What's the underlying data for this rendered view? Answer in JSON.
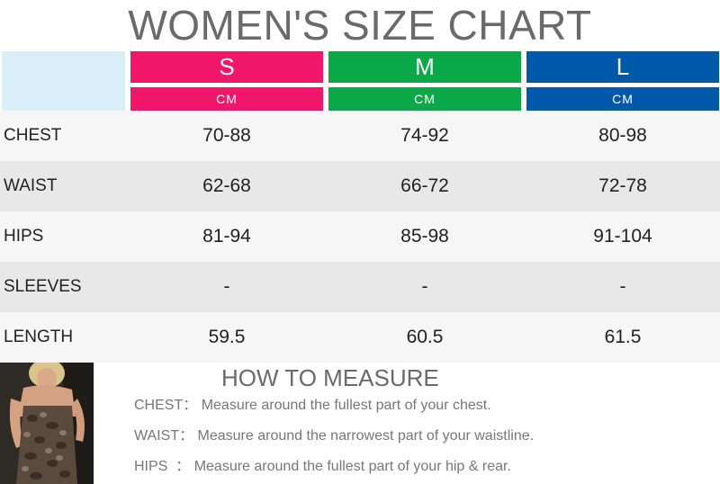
{
  "title": "WOMEN'S SIZE CHART",
  "colors": {
    "S": "#f0176a",
    "M": "#0ba84a",
    "L": "#0058a9",
    "corner": "#daeef7"
  },
  "sizes": [
    {
      "name": "S",
      "unit": "CM"
    },
    {
      "name": "M",
      "unit": "CM"
    },
    {
      "name": "L",
      "unit": "CM"
    }
  ],
  "rows": [
    {
      "label": "CHEST",
      "values": [
        "70-88",
        "74-92",
        "80-98"
      ]
    },
    {
      "label": "WAIST",
      "values": [
        "62-68",
        "66-72",
        "72-78"
      ]
    },
    {
      "label": "HIPS",
      "values": [
        "81-94",
        "85-98",
        "91-104"
      ]
    },
    {
      "label": "SLEEVES",
      "values": [
        "-",
        "-",
        "-"
      ]
    },
    {
      "label": "LENGTH",
      "values": [
        "59.5",
        "60.5",
        "61.5"
      ]
    }
  ],
  "how_to_measure": {
    "title": "HOW TO MEASURE",
    "items": [
      {
        "key": "CHEST：",
        "text": "Measure around the fullest part of your chest."
      },
      {
        "key": "WAIST：",
        "text": "Measure around the narrowest part of your waistline."
      },
      {
        "key": "HIPS  ：",
        "text": "Measure around the fullest part of your hip & rear."
      }
    ]
  }
}
